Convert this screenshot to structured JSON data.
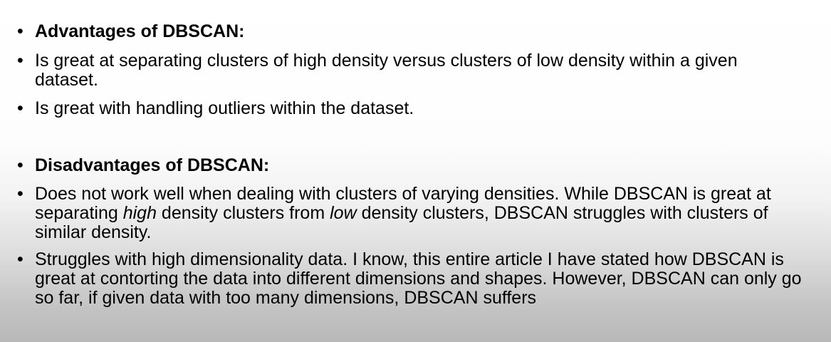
{
  "slide": {
    "advantages": {
      "heading": "Advantages of DBSCAN:",
      "items": [
        "Is great at separating clusters of high density versus clusters of low density within a given dataset.",
        "Is great with handling outliers within the dataset."
      ]
    },
    "disadvantages": {
      "heading": "Disadvantages of DBSCAN:",
      "item1": {
        "part1": "Does not work well when dealing with clusters of varying densities. While DBSCAN is great at separating ",
        "em1": "high",
        "part2": " density clusters from ",
        "em2": "low",
        "part3": " density clusters, DBSCAN struggles with clusters of similar density."
      },
      "item2": "Struggles with high dimensionality data. I know, this entire article I have stated how DBSCAN is great at contorting the data into different dimensions and shapes. However, DBSCAN can only go so far, if given data with too many dimensions, DBSCAN suffers"
    },
    "bullet_char": "•"
  }
}
